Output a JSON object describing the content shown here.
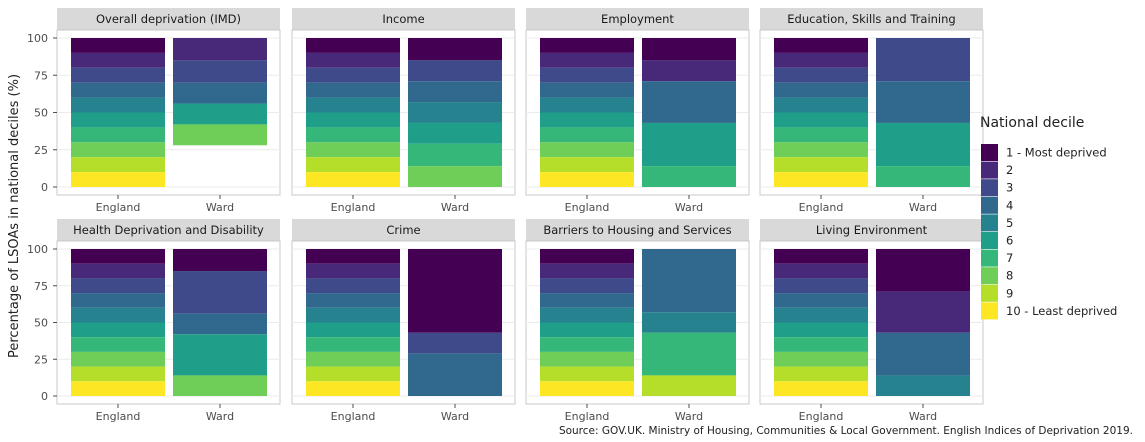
{
  "chart_data": {
    "type": "bar",
    "stacked": true,
    "percent_stacked": true,
    "ylabel": "Percentage of LSOAs in national deciles (%)",
    "ylim": [
      0,
      100
    ],
    "yticks": [
      0,
      25,
      50,
      75,
      100
    ],
    "categories": [
      "England",
      "Ward"
    ],
    "layout": "2x4 facets",
    "legend": {
      "title": "National decile",
      "position": "right",
      "entries": [
        "1 - Most deprived",
        "2",
        "3",
        "4",
        "5",
        "6",
        "7",
        "8",
        "9",
        "10 - Least deprived"
      ],
      "colors": [
        "#440154",
        "#482878",
        "#3e4a89",
        "#31688e",
        "#26828e",
        "#1f9e89",
        "#35b779",
        "#6ece58",
        "#b5de2b",
        "#fde725"
      ]
    },
    "source": "Source: GOV.UK. Ministry of Housing, Communities & Local Government. English Indices of Deprivation 2019.",
    "panels": [
      {
        "title": "Overall deprivation (IMD)",
        "England": [
          10,
          10,
          10,
          10,
          10,
          10,
          10,
          10,
          10,
          10
        ],
        "Ward": [
          0,
          15,
          15,
          14,
          0,
          14,
          0,
          14,
          0,
          0
        ]
      },
      {
        "title": "Income",
        "England": [
          10,
          10,
          10,
          10,
          10,
          10,
          10,
          10,
          10,
          10
        ],
        "Ward": [
          15,
          0,
          14,
          14,
          14,
          14,
          15,
          14,
          0,
          0
        ]
      },
      {
        "title": "Employment",
        "England": [
          10,
          10,
          10,
          10,
          10,
          10,
          10,
          10,
          10,
          10
        ],
        "Ward": [
          15,
          14,
          0,
          28,
          0,
          29,
          14,
          0,
          0,
          0
        ]
      },
      {
        "title": "Education, Skills and Training",
        "England": [
          10,
          10,
          10,
          10,
          10,
          10,
          10,
          10,
          10,
          10
        ],
        "Ward": [
          0,
          0,
          29,
          28,
          0,
          29,
          14,
          0,
          0,
          0
        ]
      },
      {
        "title": "Health Deprivation and Disability",
        "England": [
          10,
          10,
          10,
          10,
          10,
          10,
          10,
          10,
          10,
          10
        ],
        "Ward": [
          15,
          0,
          29,
          14,
          0,
          28,
          0,
          14,
          0,
          0
        ]
      },
      {
        "title": "Crime",
        "England": [
          10,
          10,
          10,
          10,
          10,
          10,
          10,
          10,
          10,
          10
        ],
        "Ward": [
          57,
          0,
          14,
          29,
          0,
          0,
          0,
          0,
          0,
          0
        ]
      },
      {
        "title": "Barriers to Housing and Services",
        "England": [
          10,
          10,
          10,
          10,
          10,
          10,
          10,
          10,
          10,
          10
        ],
        "Ward": [
          0,
          0,
          0,
          43,
          14,
          0,
          29,
          0,
          14,
          0
        ]
      },
      {
        "title": "Living Environment",
        "England": [
          10,
          10,
          10,
          10,
          10,
          10,
          10,
          10,
          10,
          10
        ],
        "Ward": [
          29,
          28,
          0,
          29,
          14,
          0,
          0,
          0,
          0,
          0
        ]
      }
    ]
  }
}
